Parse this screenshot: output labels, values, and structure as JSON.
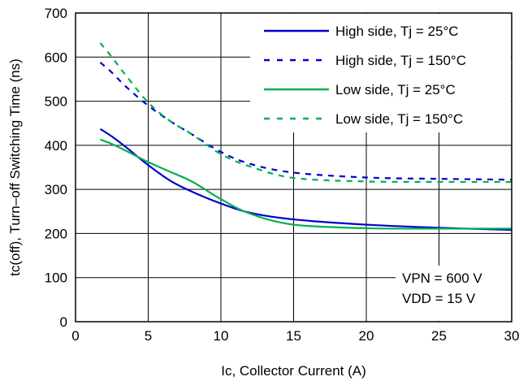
{
  "chart_data": {
    "type": "line",
    "xlabel": "Ic, Collector Current (A)",
    "ylabel": "tc(off), Turn–off Switching Time (ns)",
    "xlim": [
      0,
      30
    ],
    "ylim": [
      0,
      700
    ],
    "xticks": [
      0,
      5,
      10,
      15,
      20,
      25,
      30
    ],
    "yticks": [
      0,
      100,
      200,
      300,
      400,
      500,
      600,
      700
    ],
    "grid": true,
    "legend_position": "top-right",
    "annotations": [
      "VPN = 600 V",
      "VDD = 15 V"
    ],
    "series": [
      {
        "name": "High side, Tj = 25°C",
        "color": "#0000cc",
        "style": "solid",
        "x": [
          1.7,
          2.5,
          3.5,
          5,
          6.5,
          8,
          10,
          12,
          15,
          20,
          25,
          30
        ],
        "y": [
          437,
          420,
          395,
          355,
          320,
          295,
          268,
          247,
          232,
          220,
          213,
          208
        ]
      },
      {
        "name": "High side, Tj = 150°C",
        "color": "#0000cc",
        "style": "dashed",
        "x": [
          1.7,
          2.5,
          3.5,
          5,
          6.5,
          8,
          10,
          12,
          15,
          20,
          25,
          30
        ],
        "y": [
          588,
          565,
          532,
          490,
          455,
          425,
          385,
          358,
          338,
          327,
          324,
          322
        ]
      },
      {
        "name": "Low side, Tj = 25°C",
        "color": "#00b050",
        "style": "solid",
        "x": [
          1.7,
          2.5,
          3.5,
          5,
          6.5,
          8,
          10,
          12,
          15,
          20,
          25,
          30
        ],
        "y": [
          413,
          403,
          387,
          362,
          340,
          318,
          278,
          245,
          220,
          212,
          211,
          211
        ]
      },
      {
        "name": "Low side, Tj = 150°C",
        "color": "#00b050",
        "style": "dashed",
        "x": [
          1.7,
          2.5,
          3.5,
          5,
          6.5,
          8,
          10,
          12,
          15,
          20,
          25,
          30
        ],
        "y": [
          632,
          600,
          557,
          497,
          455,
          425,
          380,
          352,
          326,
          318,
          317,
          317
        ]
      }
    ]
  }
}
